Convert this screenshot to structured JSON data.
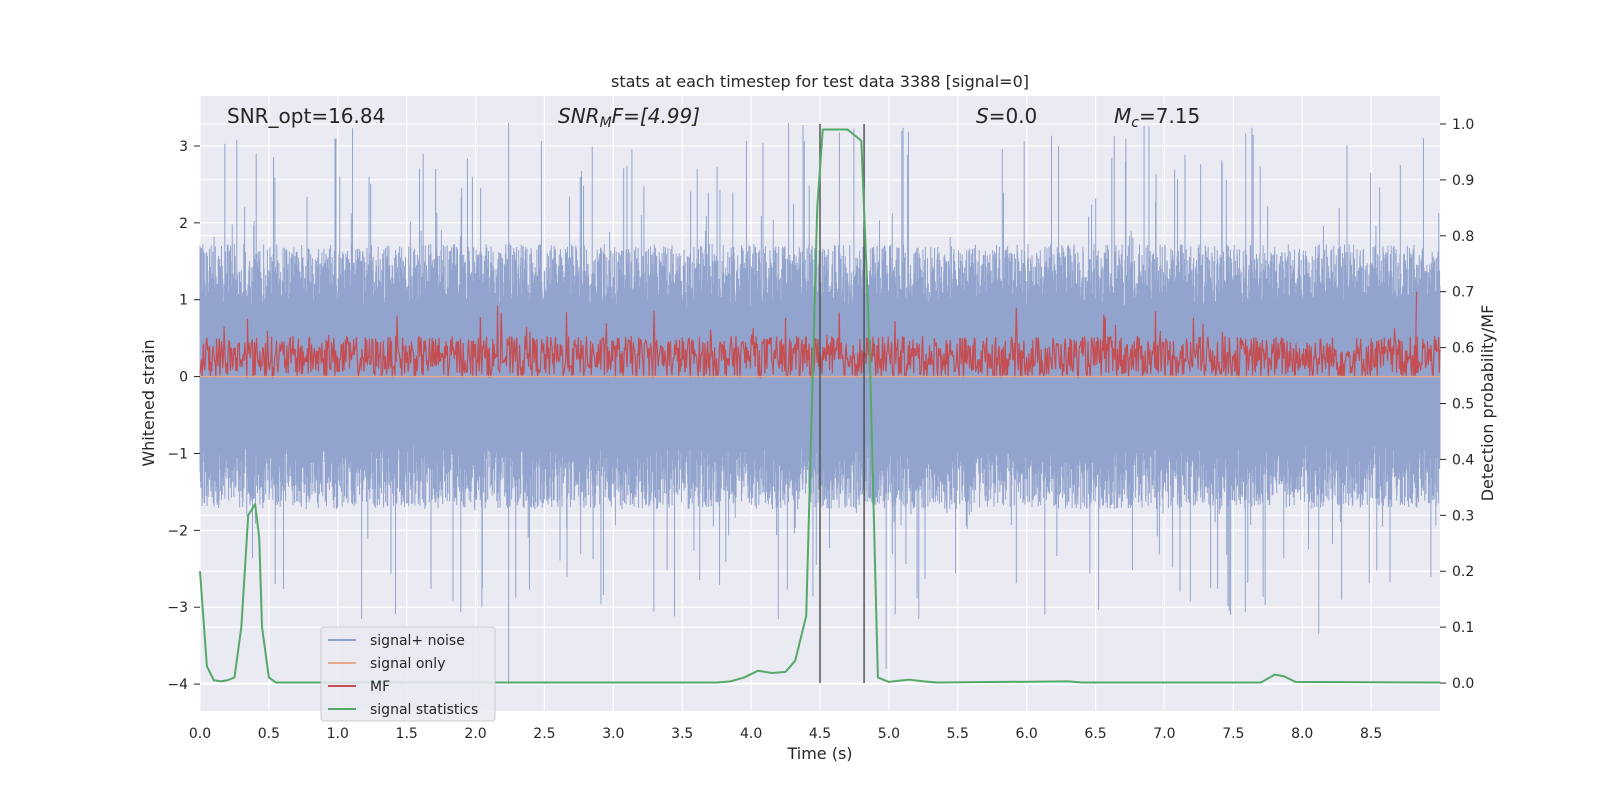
{
  "chart_data": {
    "type": "line",
    "title": "stats at each timestep for test data 3388 [signal=0]",
    "xlabel": "Time (s)",
    "ylabel": "Whitened strain",
    "y2label": "Detection probability/MF",
    "xlim": [
      0,
      9.0
    ],
    "ylim": [
      -4.35,
      3.65
    ],
    "y2lim": [
      -0.05,
      1.05
    ],
    "x_ticks": [
      0.0,
      0.5,
      1.0,
      1.5,
      2.0,
      2.5,
      3.0,
      3.5,
      4.0,
      4.5,
      5.0,
      5.5,
      6.0,
      6.5,
      7.0,
      7.5,
      8.0,
      8.5
    ],
    "x_tick_labels": [
      "0.0",
      "0.5",
      "1.0",
      "1.5",
      "2.0",
      "2.5",
      "3.0",
      "3.5",
      "4.0",
      "4.5",
      "5.0",
      "5.5",
      "6.0",
      "6.5",
      "7.0",
      "7.5",
      "8.0",
      "8.5"
    ],
    "y_ticks": [
      -4,
      -3,
      -2,
      -1,
      0,
      1,
      2,
      3
    ],
    "y_tick_labels": [
      "−4",
      "−3",
      "−2",
      "−1",
      "0",
      "1",
      "2",
      "3"
    ],
    "y2_ticks": [
      0.0,
      0.1,
      0.2,
      0.3,
      0.4,
      0.5,
      0.6,
      0.7,
      0.8,
      0.9,
      1.0
    ],
    "y2_tick_labels": [
      "0.0",
      "0.1",
      "0.2",
      "0.3",
      "0.4",
      "0.5",
      "0.6",
      "0.7",
      "0.8",
      "0.9",
      "1.0"
    ],
    "grid": true,
    "legend_position": "lower-left",
    "annotations": {
      "snr_opt": "SNR_opt=16.84",
      "snr_mf_base": "SNR",
      "snr_mf_sub": "M",
      "snr_mf_rest": "F=[4.99]",
      "s_var": "S",
      "s_rest": "=0.0",
      "mc_base": "M",
      "mc_sub": "c",
      "mc_rest": "=7.15"
    },
    "vertical_lines": [
      4.5,
      4.82
    ],
    "series": [
      {
        "name": "signal+ noise",
        "color": "#8da0cb",
        "description_range": [
          -3.35,
          3.3
        ],
        "envelope": {
          "typical_max": 1.5,
          "typical_min": -1.5,
          "peak_max": 3.3,
          "peak_min": -4.0
        }
      },
      {
        "name": "signal only",
        "color": "#e8a88c",
        "x": [
          0.0,
          9.0
        ],
        "y": [
          0.0,
          0.0
        ]
      },
      {
        "name": "MF",
        "color": "#c44e52",
        "axis": "right",
        "band": [
          0.546,
          0.62
        ],
        "peak": 0.7
      },
      {
        "name": "signal statistics",
        "color": "#55a868",
        "axis": "right",
        "x": [
          0.0,
          0.05,
          0.1,
          0.15,
          0.2,
          0.25,
          0.3,
          0.35,
          0.4,
          0.43,
          0.45,
          0.5,
          0.55,
          3.75,
          3.85,
          3.95,
          4.05,
          4.15,
          4.25,
          4.32,
          4.4,
          4.48,
          4.52,
          4.6,
          4.65,
          4.7,
          4.75,
          4.8,
          4.86,
          4.92,
          5.0,
          5.1,
          5.15,
          5.25,
          5.35,
          6.3,
          6.4,
          7.7,
          7.8,
          7.87,
          7.95,
          9.0
        ],
        "y": [
          0.2,
          0.03,
          0.005,
          0.003,
          0.005,
          0.01,
          0.1,
          0.3,
          0.32,
          0.26,
          0.1,
          0.01,
          0.001,
          0.001,
          0.003,
          0.01,
          0.022,
          0.018,
          0.02,
          0.04,
          0.12,
          0.85,
          0.99,
          0.99,
          0.99,
          0.99,
          0.98,
          0.97,
          0.6,
          0.01,
          0.002,
          0.005,
          0.006,
          0.003,
          0.001,
          0.003,
          0.001,
          0.001,
          0.015,
          0.012,
          0.002,
          0.001
        ]
      }
    ]
  }
}
